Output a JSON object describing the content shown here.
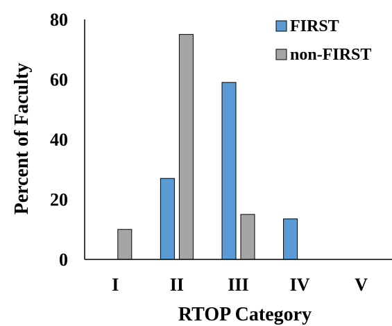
{
  "colors": {
    "first": "#5B9BD5",
    "non_first": "#A5A5A5",
    "bar_stroke": "#000000",
    "axis": "#000000"
  },
  "chart_data": {
    "type": "bar",
    "categories": [
      "I",
      "II",
      "III",
      "IV",
      "V"
    ],
    "series": [
      {
        "name": "FIRST",
        "values": [
          0,
          27,
          59,
          13.5,
          0
        ]
      },
      {
        "name": "non-FIRST",
        "values": [
          10,
          75,
          15,
          0,
          0
        ]
      }
    ],
    "xlabel": "RTOP Category",
    "ylabel": "Percent of Faculty",
    "ylim": [
      0,
      80
    ],
    "yticks": [
      0,
      20,
      40,
      60,
      80
    ],
    "grid": false,
    "legend_position": "top-right"
  }
}
